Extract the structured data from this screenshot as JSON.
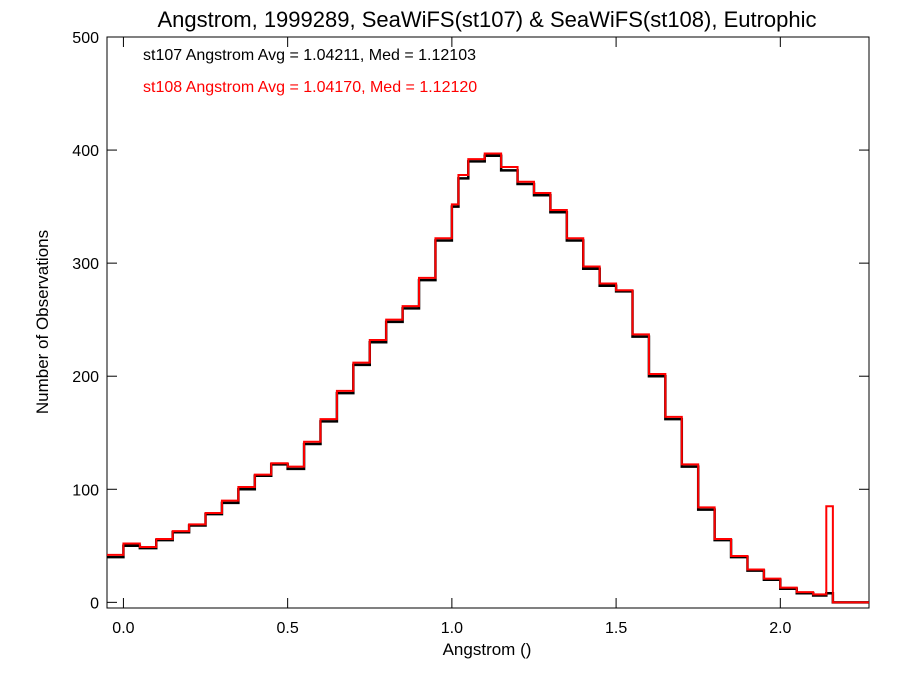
{
  "chart_data": {
    "type": "line",
    "title": "Angstrom, 1999289, SeaWiFS(st107) & SeaWiFS(st108), Eutrophic",
    "xlabel": "Angstrom ()",
    "ylabel": "Number of Observations",
    "xlim": [
      -0.05,
      2.27
    ],
    "ylim": [
      -5,
      500
    ],
    "xticks": [
      0.0,
      0.5,
      1.0,
      1.5,
      2.0
    ],
    "xtick_labels": [
      "0.0",
      "0.5",
      "1.0",
      "1.5",
      "2.0"
    ],
    "yticks": [
      0,
      100,
      200,
      300,
      400,
      500
    ],
    "ytick_labels": [
      "0",
      "100",
      "200",
      "300",
      "400",
      "500"
    ],
    "grid": false,
    "annotations": [
      {
        "text": "st107 Angstrom Avg = 1.04211, Med = 1.12103",
        "color": "#000000"
      },
      {
        "text": "st108 Angstrom Avg = 1.04170, Med = 1.12120",
        "color": "#ff0000"
      }
    ],
    "series": [
      {
        "color": "#000000",
        "x": [
          -0.05,
          0.0,
          0.05,
          0.1,
          0.15,
          0.2,
          0.25,
          0.3,
          0.35,
          0.4,
          0.45,
          0.5,
          0.55,
          0.6,
          0.65,
          0.7,
          0.75,
          0.8,
          0.85,
          0.9,
          0.95,
          1.0,
          1.02,
          1.05,
          1.1,
          1.15,
          1.2,
          1.25,
          1.3,
          1.35,
          1.4,
          1.45,
          1.5,
          1.55,
          1.6,
          1.65,
          1.7,
          1.75,
          1.8,
          1.85,
          1.9,
          1.95,
          2.0,
          2.05,
          2.1,
          2.14,
          2.16,
          2.2,
          2.27
        ],
        "y": [
          40,
          50,
          48,
          55,
          62,
          68,
          78,
          88,
          100,
          112,
          122,
          118,
          140,
          160,
          185,
          210,
          230,
          248,
          260,
          285,
          320,
          350,
          375,
          390,
          395,
          382,
          370,
          360,
          345,
          320,
          295,
          280,
          275,
          235,
          200,
          162,
          120,
          82,
          55,
          40,
          28,
          20,
          12,
          8,
          6,
          8,
          0,
          0,
          0
        ]
      },
      {
        "color": "#ff0000",
        "x": [
          -0.05,
          0.0,
          0.05,
          0.1,
          0.15,
          0.2,
          0.25,
          0.3,
          0.35,
          0.4,
          0.45,
          0.5,
          0.55,
          0.6,
          0.65,
          0.7,
          0.75,
          0.8,
          0.85,
          0.9,
          0.95,
          1.0,
          1.02,
          1.05,
          1.1,
          1.15,
          1.2,
          1.25,
          1.3,
          1.35,
          1.4,
          1.45,
          1.5,
          1.55,
          1.6,
          1.65,
          1.7,
          1.75,
          1.8,
          1.85,
          1.9,
          1.95,
          2.0,
          2.05,
          2.1,
          2.14,
          2.16,
          2.2,
          2.27
        ],
        "y": [
          42,
          52,
          49,
          56,
          63,
          69,
          79,
          90,
          102,
          113,
          123,
          120,
          142,
          162,
          187,
          212,
          232,
          250,
          262,
          287,
          322,
          352,
          378,
          392,
          397,
          385,
          372,
          362,
          347,
          322,
          297,
          282,
          276,
          237,
          202,
          164,
          122,
          84,
          56,
          41,
          29,
          21,
          13,
          9,
          7,
          85,
          0,
          0,
          0
        ]
      }
    ]
  }
}
